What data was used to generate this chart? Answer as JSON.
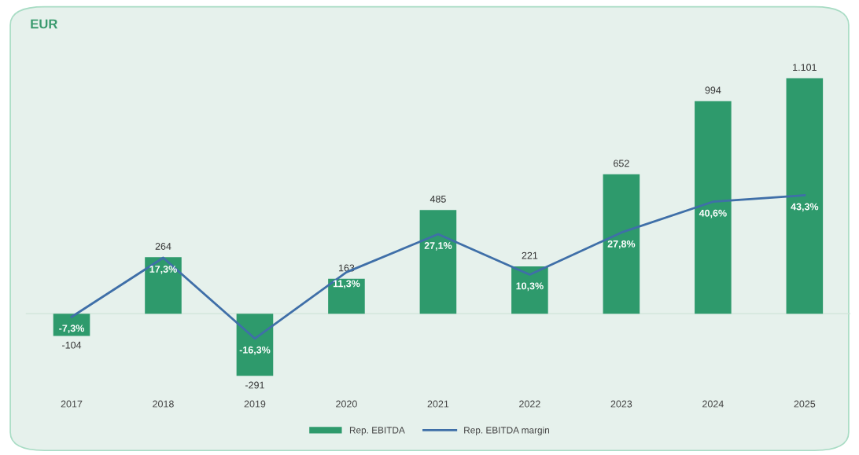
{
  "chart_data": {
    "type": "bar",
    "title": "EUR",
    "categories": [
      "2017",
      "2018",
      "2019",
      "2020",
      "2021",
      "2022",
      "2023",
      "2024",
      "2025"
    ],
    "series": [
      {
        "name": "Rep. EBITDA",
        "color": "#2e9a6c",
        "values": [
          -104,
          264,
          -291,
          163,
          485,
          221,
          652,
          994,
          1101
        ],
        "value_labels": [
          "-104",
          "264",
          "-291",
          "163",
          "485",
          "221",
          "652",
          "994",
          "1.101"
        ]
      },
      {
        "name": "Rep. EBITDA margin",
        "type": "line",
        "axis": "y2",
        "color": "#3f6fa8",
        "values": [
          -7.3,
          17.3,
          -16.3,
          11.3,
          27.1,
          10.3,
          27.8,
          40.6,
          43.3
        ],
        "value_labels": [
          "-7,3%",
          "17,3%",
          "-16,3%",
          "11,3%",
          "27,1%",
          "10,3%",
          "27,8%",
          "40,6%",
          "43,3%"
        ]
      }
    ],
    "legend": "bottom",
    "marker": "none",
    "line_style": "solid"
  }
}
